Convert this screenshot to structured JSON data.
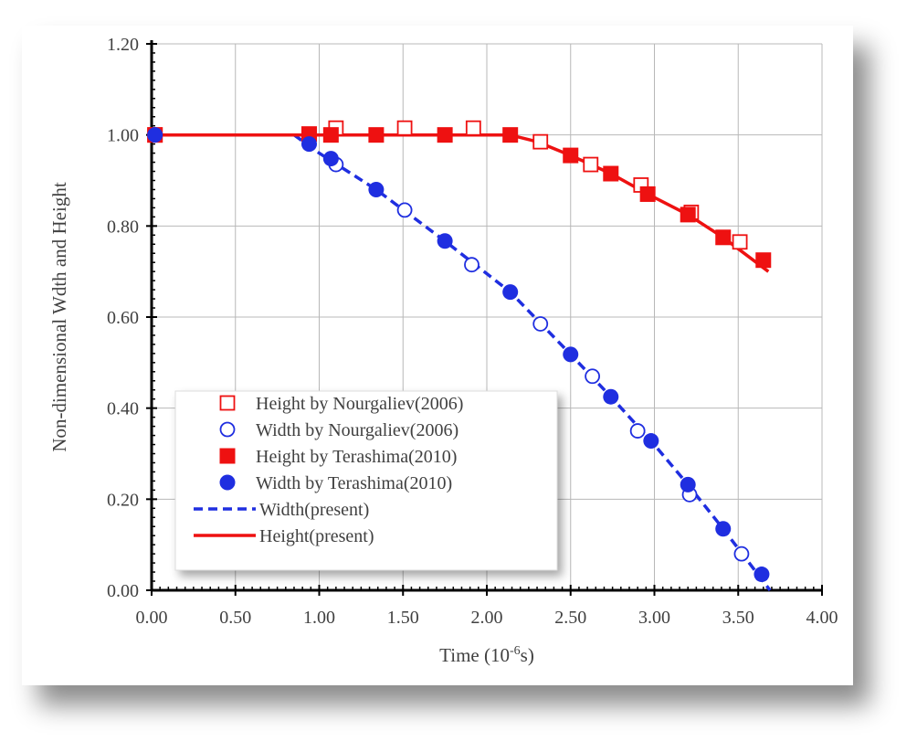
{
  "chart_data": {
    "type": "scatter",
    "xlabel": "Time (10",
    "xlabel_exponent": "-6",
    "xlabel_suffix": "s)",
    "ylabel": "Non-dimensional Wdth and Height",
    "xlim": [
      0,
      4
    ],
    "ylim": [
      0,
      1.2
    ],
    "xticks": [
      0,
      0.5,
      1,
      1.5,
      2,
      2.5,
      3,
      3.5,
      4
    ],
    "xtick_labels": [
      "0.00",
      "0.50",
      "1.00",
      "1.50",
      "2.00",
      "2.50",
      "3.00",
      "3.50",
      "4.00"
    ],
    "yticks": [
      0,
      0.2,
      0.4,
      0.6,
      0.8,
      1,
      1.2
    ],
    "ytick_labels": [
      "0.00",
      "0.20",
      "0.40",
      "0.60",
      "0.80",
      "1.00",
      "1.20"
    ],
    "grid": true,
    "legend_position": "lower-left",
    "series": [
      {
        "name": "Height by Nourgaliev(2006)",
        "marker": "square-open",
        "color": "#ee1111",
        "points": [
          [
            0.02,
            1.0
          ],
          [
            1.1,
            1.015
          ],
          [
            1.51,
            1.015
          ],
          [
            1.92,
            1.015
          ],
          [
            2.32,
            0.985
          ],
          [
            2.62,
            0.935
          ],
          [
            2.92,
            0.89
          ],
          [
            3.22,
            0.83
          ],
          [
            3.51,
            0.765
          ]
        ]
      },
      {
        "name": "Width by Nourgaliev(2006)",
        "marker": "circle-open",
        "color": "#1f2ee0",
        "points": [
          [
            0.02,
            1.0
          ],
          [
            1.1,
            0.935
          ],
          [
            1.51,
            0.835
          ],
          [
            1.91,
            0.715
          ],
          [
            2.32,
            0.585
          ],
          [
            2.63,
            0.47
          ],
          [
            2.9,
            0.35
          ],
          [
            3.21,
            0.21
          ],
          [
            3.52,
            0.08
          ]
        ]
      },
      {
        "name": "Height by Terashima(2010)",
        "marker": "square-filled",
        "color": "#ee1111",
        "points": [
          [
            0.02,
            1.0
          ],
          [
            0.94,
            1.002
          ],
          [
            1.07,
            1.0
          ],
          [
            1.34,
            1.0
          ],
          [
            1.75,
            1.0
          ],
          [
            2.14,
            1.0
          ],
          [
            2.5,
            0.955
          ],
          [
            2.74,
            0.915
          ],
          [
            2.96,
            0.87
          ],
          [
            3.2,
            0.825
          ],
          [
            3.41,
            0.775
          ],
          [
            3.65,
            0.725
          ]
        ]
      },
      {
        "name": "Width by Terashima(2010)",
        "marker": "circle-filled",
        "color": "#1f2ee0",
        "points": [
          [
            0.02,
            1.0
          ],
          [
            0.94,
            0.98
          ],
          [
            1.07,
            0.948
          ],
          [
            1.34,
            0.88
          ],
          [
            1.75,
            0.767
          ],
          [
            2.14,
            0.655
          ],
          [
            2.5,
            0.518
          ],
          [
            2.74,
            0.425
          ],
          [
            2.98,
            0.328
          ],
          [
            3.2,
            0.232
          ],
          [
            3.41,
            0.135
          ],
          [
            3.64,
            0.035
          ]
        ]
      },
      {
        "name": "Width(present)",
        "line": "dashed",
        "color": "#1f2ee0",
        "points": [
          [
            0.85,
            1.0
          ],
          [
            1.0,
            0.96
          ],
          [
            1.34,
            0.88
          ],
          [
            1.75,
            0.767
          ],
          [
            2.14,
            0.655
          ],
          [
            2.5,
            0.518
          ],
          [
            2.74,
            0.425
          ],
          [
            2.98,
            0.328
          ],
          [
            3.2,
            0.232
          ],
          [
            3.41,
            0.135
          ],
          [
            3.69,
            0.0
          ]
        ]
      },
      {
        "name": "Height(present)",
        "line": "solid",
        "color": "#ee1111",
        "points": [
          [
            0.0,
            1.0
          ],
          [
            0.85,
            1.0
          ],
          [
            2.14,
            1.0
          ],
          [
            2.3,
            0.985
          ],
          [
            2.5,
            0.955
          ],
          [
            2.74,
            0.915
          ],
          [
            2.96,
            0.87
          ],
          [
            3.2,
            0.825
          ],
          [
            3.41,
            0.775
          ],
          [
            3.68,
            0.7
          ]
        ]
      }
    ]
  }
}
